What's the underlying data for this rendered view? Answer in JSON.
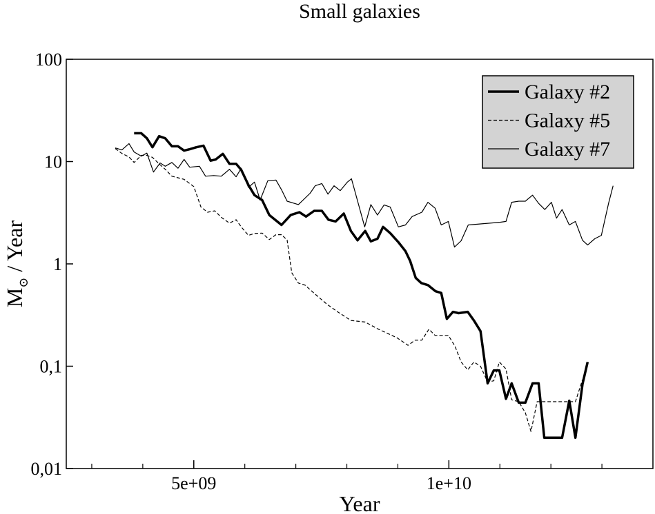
{
  "chart_data": {
    "type": "line",
    "title": "Small galaxies",
    "xlabel": "Year",
    "ylabel": {
      "main": "M",
      "sub": "⊙",
      "rest": " / Year"
    },
    "xlim": [
      2500000000.0,
      14000000000.0
    ],
    "xticks": [
      {
        "value": 5000000000.0,
        "label": "5e+09"
      },
      {
        "value": 10000000000.0,
        "label": "1e+10"
      }
    ],
    "xminorticks": [
      3000000000.0,
      4000000000.0,
      6000000000.0,
      7000000000.0,
      8000000000.0,
      9000000000.0,
      11000000000.0,
      12000000000.0,
      13000000000.0
    ],
    "ylim": [
      0.01,
      100
    ],
    "yscale": "log",
    "yticks": [
      {
        "value": 0.01,
        "label": "0,01"
      },
      {
        "value": 0.1,
        "label": "0,1"
      },
      1,
      10,
      100
    ],
    "legend": "upper right",
    "series": [
      {
        "name": "Galaxy #2",
        "color": "#000000",
        "style": "solid",
        "linewidth": 3.5,
        "x": [
          3830000000.0,
          3970000000.0,
          4080000000.0,
          4190000000.0,
          4320000000.0,
          4440000000.0,
          4570000000.0,
          4690000000.0,
          4810000000.0,
          4920000000.0,
          5050000000.0,
          5190000000.0,
          5330000000.0,
          5430000000.0,
          5570000000.0,
          5700000000.0,
          5830000000.0,
          5930000000.0,
          6070000000.0,
          6190000000.0,
          6340000000.0,
          6480000000.0,
          6720000000.0,
          6900000000.0,
          7070000000.0,
          7200000000.0,
          7360000000.0,
          7510000000.0,
          7640000000.0,
          7780000000.0,
          7940000000.0,
          8080000000.0,
          8210000000.0,
          8360000000.0,
          8470000000.0,
          8600000000.0,
          8710000000.0,
          8850000000.0,
          9010000000.0,
          9150000000.0,
          9240000000.0,
          9350000000.0,
          9460000000.0,
          9590000000.0,
          9740000000.0,
          9850000000.0,
          9960000000.0,
          10080000000.0,
          10190000000.0,
          10370000000.0,
          10490000000.0,
          10620000000.0,
          10760000000.0,
          10880000000.0,
          10990000000.0,
          11120000000.0,
          11230000000.0,
          11370000000.0,
          11500000000.0,
          11640000000.0,
          11760000000.0,
          11870000000.0,
          12010000000.0,
          12220000000.0,
          12360000000.0,
          12480000000.0,
          12620000000.0,
          12720000000.0
        ],
        "values": [
          18.9,
          18.9,
          16.9,
          13.8,
          17.7,
          16.9,
          14.1,
          14.1,
          12.8,
          13.2,
          13.8,
          14.3,
          10.2,
          10.5,
          11.9,
          9.5,
          9.5,
          8.3,
          5.9,
          4.7,
          4.2,
          3.0,
          2.4,
          3.0,
          3.2,
          2.9,
          3.3,
          3.3,
          2.7,
          2.6,
          3.1,
          2.1,
          1.7,
          2.1,
          1.66,
          1.76,
          2.3,
          2.0,
          1.63,
          1.33,
          1.07,
          0.73,
          0.65,
          0.62,
          0.54,
          0.52,
          0.29,
          0.34,
          0.33,
          0.34,
          0.28,
          0.22,
          0.068,
          0.091,
          0.091,
          0.048,
          0.068,
          0.044,
          0.044,
          0.068,
          0.068,
          0.02,
          0.02,
          0.02,
          0.046,
          0.02,
          0.067,
          0.11
        ]
      },
      {
        "name": "Galaxy #5",
        "color": "#000000",
        "style": "dashed",
        "linewidth": 1.2,
        "x": [
          3460000000.0,
          3590000000.0,
          3730000000.0,
          3830000000.0,
          3970000000.0,
          4080000000.0,
          4190000000.0,
          4320000000.0,
          4440000000.0,
          4570000000.0,
          4810000000.0,
          5000000000.0,
          5140000000.0,
          5270000000.0,
          5410000000.0,
          5540000000.0,
          5700000000.0,
          5830000000.0,
          5930000000.0,
          6070000000.0,
          6190000000.0,
          6340000000.0,
          6480000000.0,
          6610000000.0,
          6720000000.0,
          6830000000.0,
          6920000000.0,
          7050000000.0,
          7180000000.0,
          7370000000.0,
          7620000000.0,
          7820000000.0,
          8080000000.0,
          8360000000.0,
          8620000000.0,
          8980000000.0,
          9200000000.0,
          9340000000.0,
          9470000000.0,
          9610000000.0,
          9730000000.0,
          9990000000.0,
          10120000000.0,
          10240000000.0,
          10370000000.0,
          10490000000.0,
          10620000000.0,
          10760000000.0,
          10880000000.0,
          10990000000.0,
          11120000000.0,
          11230000000.0,
          11370000000.0,
          11500000000.0,
          11610000000.0,
          11730000000.0,
          12010000000.0,
          12220000000.0,
          12480000000.0,
          12620000000.0
        ],
        "values": [
          13.4,
          12.0,
          11.1,
          9.8,
          11.5,
          11.5,
          11.0,
          9.5,
          8.4,
          7.2,
          6.7,
          5.7,
          3.6,
          3.2,
          3.3,
          2.85,
          2.5,
          2.7,
          2.3,
          1.9,
          1.98,
          2.0,
          1.73,
          1.93,
          1.93,
          1.71,
          0.82,
          0.65,
          0.62,
          0.51,
          0.4,
          0.34,
          0.28,
          0.27,
          0.23,
          0.19,
          0.16,
          0.18,
          0.18,
          0.23,
          0.2,
          0.2,
          0.157,
          0.11,
          0.092,
          0.11,
          0.1,
          0.07,
          0.072,
          0.11,
          0.094,
          0.047,
          0.045,
          0.035,
          0.023,
          0.045,
          0.045,
          0.045,
          0.045,
          0.074
        ]
      },
      {
        "name": "Galaxy #7",
        "color": "#000000",
        "style": "solid",
        "linewidth": 1.2,
        "x": [
          3460000000.0,
          3590000000.0,
          3730000000.0,
          3830000000.0,
          3970000000.0,
          4080000000.0,
          4210000000.0,
          4340000000.0,
          4440000000.0,
          4570000000.0,
          4690000000.0,
          4810000000.0,
          4920000000.0,
          5110000000.0,
          5230000000.0,
          5390000000.0,
          5540000000.0,
          5700000000.0,
          5830000000.0,
          5930000000.0,
          6070000000.0,
          6190000000.0,
          6300000000.0,
          6450000000.0,
          6610000000.0,
          6720000000.0,
          6830000000.0,
          7050000000.0,
          7280000000.0,
          7380000000.0,
          7510000000.0,
          7630000000.0,
          7750000000.0,
          7870000000.0,
          8010000000.0,
          8090000000.0,
          8350000000.0,
          8470000000.0,
          8600000000.0,
          8730000000.0,
          8850000000.0,
          9010000000.0,
          9150000000.0,
          9280000000.0,
          9470000000.0,
          9590000000.0,
          9730000000.0,
          9850000000.0,
          9990000000.0,
          10110000000.0,
          10240000000.0,
          10380000000.0,
          11000000000.0,
          11120000000.0,
          11230000000.0,
          11370000000.0,
          11500000000.0,
          11640000000.0,
          11760000000.0,
          11880000000.0,
          12010000000.0,
          12110000000.0,
          12220000000.0,
          12360000000.0,
          12480000000.0,
          12620000000.0,
          12720000000.0,
          12860000000.0,
          12990000000.0,
          13130000000.0,
          13220000000.0
        ],
        "values": [
          13.6,
          13.0,
          15.0,
          12.4,
          11.3,
          12.1,
          7.9,
          9.7,
          9.0,
          9.8,
          8.6,
          10.5,
          8.8,
          9.0,
          7.2,
          7.3,
          7.2,
          8.4,
          7.1,
          8.6,
          5.6,
          6.3,
          4.2,
          6.5,
          6.6,
          5.3,
          4.1,
          3.8,
          4.9,
          5.8,
          6.1,
          4.8,
          5.8,
          5.2,
          6.3,
          6.8,
          2.3,
          3.8,
          3.0,
          3.77,
          3.6,
          2.3,
          2.4,
          2.9,
          3.2,
          4.0,
          3.5,
          2.4,
          2.6,
          1.46,
          1.68,
          2.4,
          2.55,
          2.6,
          4.0,
          4.1,
          4.1,
          4.7,
          3.9,
          3.4,
          4.0,
          2.8,
          3.4,
          2.4,
          2.6,
          1.7,
          1.53,
          1.76,
          1.9,
          3.9,
          5.8
        ]
      }
    ]
  }
}
